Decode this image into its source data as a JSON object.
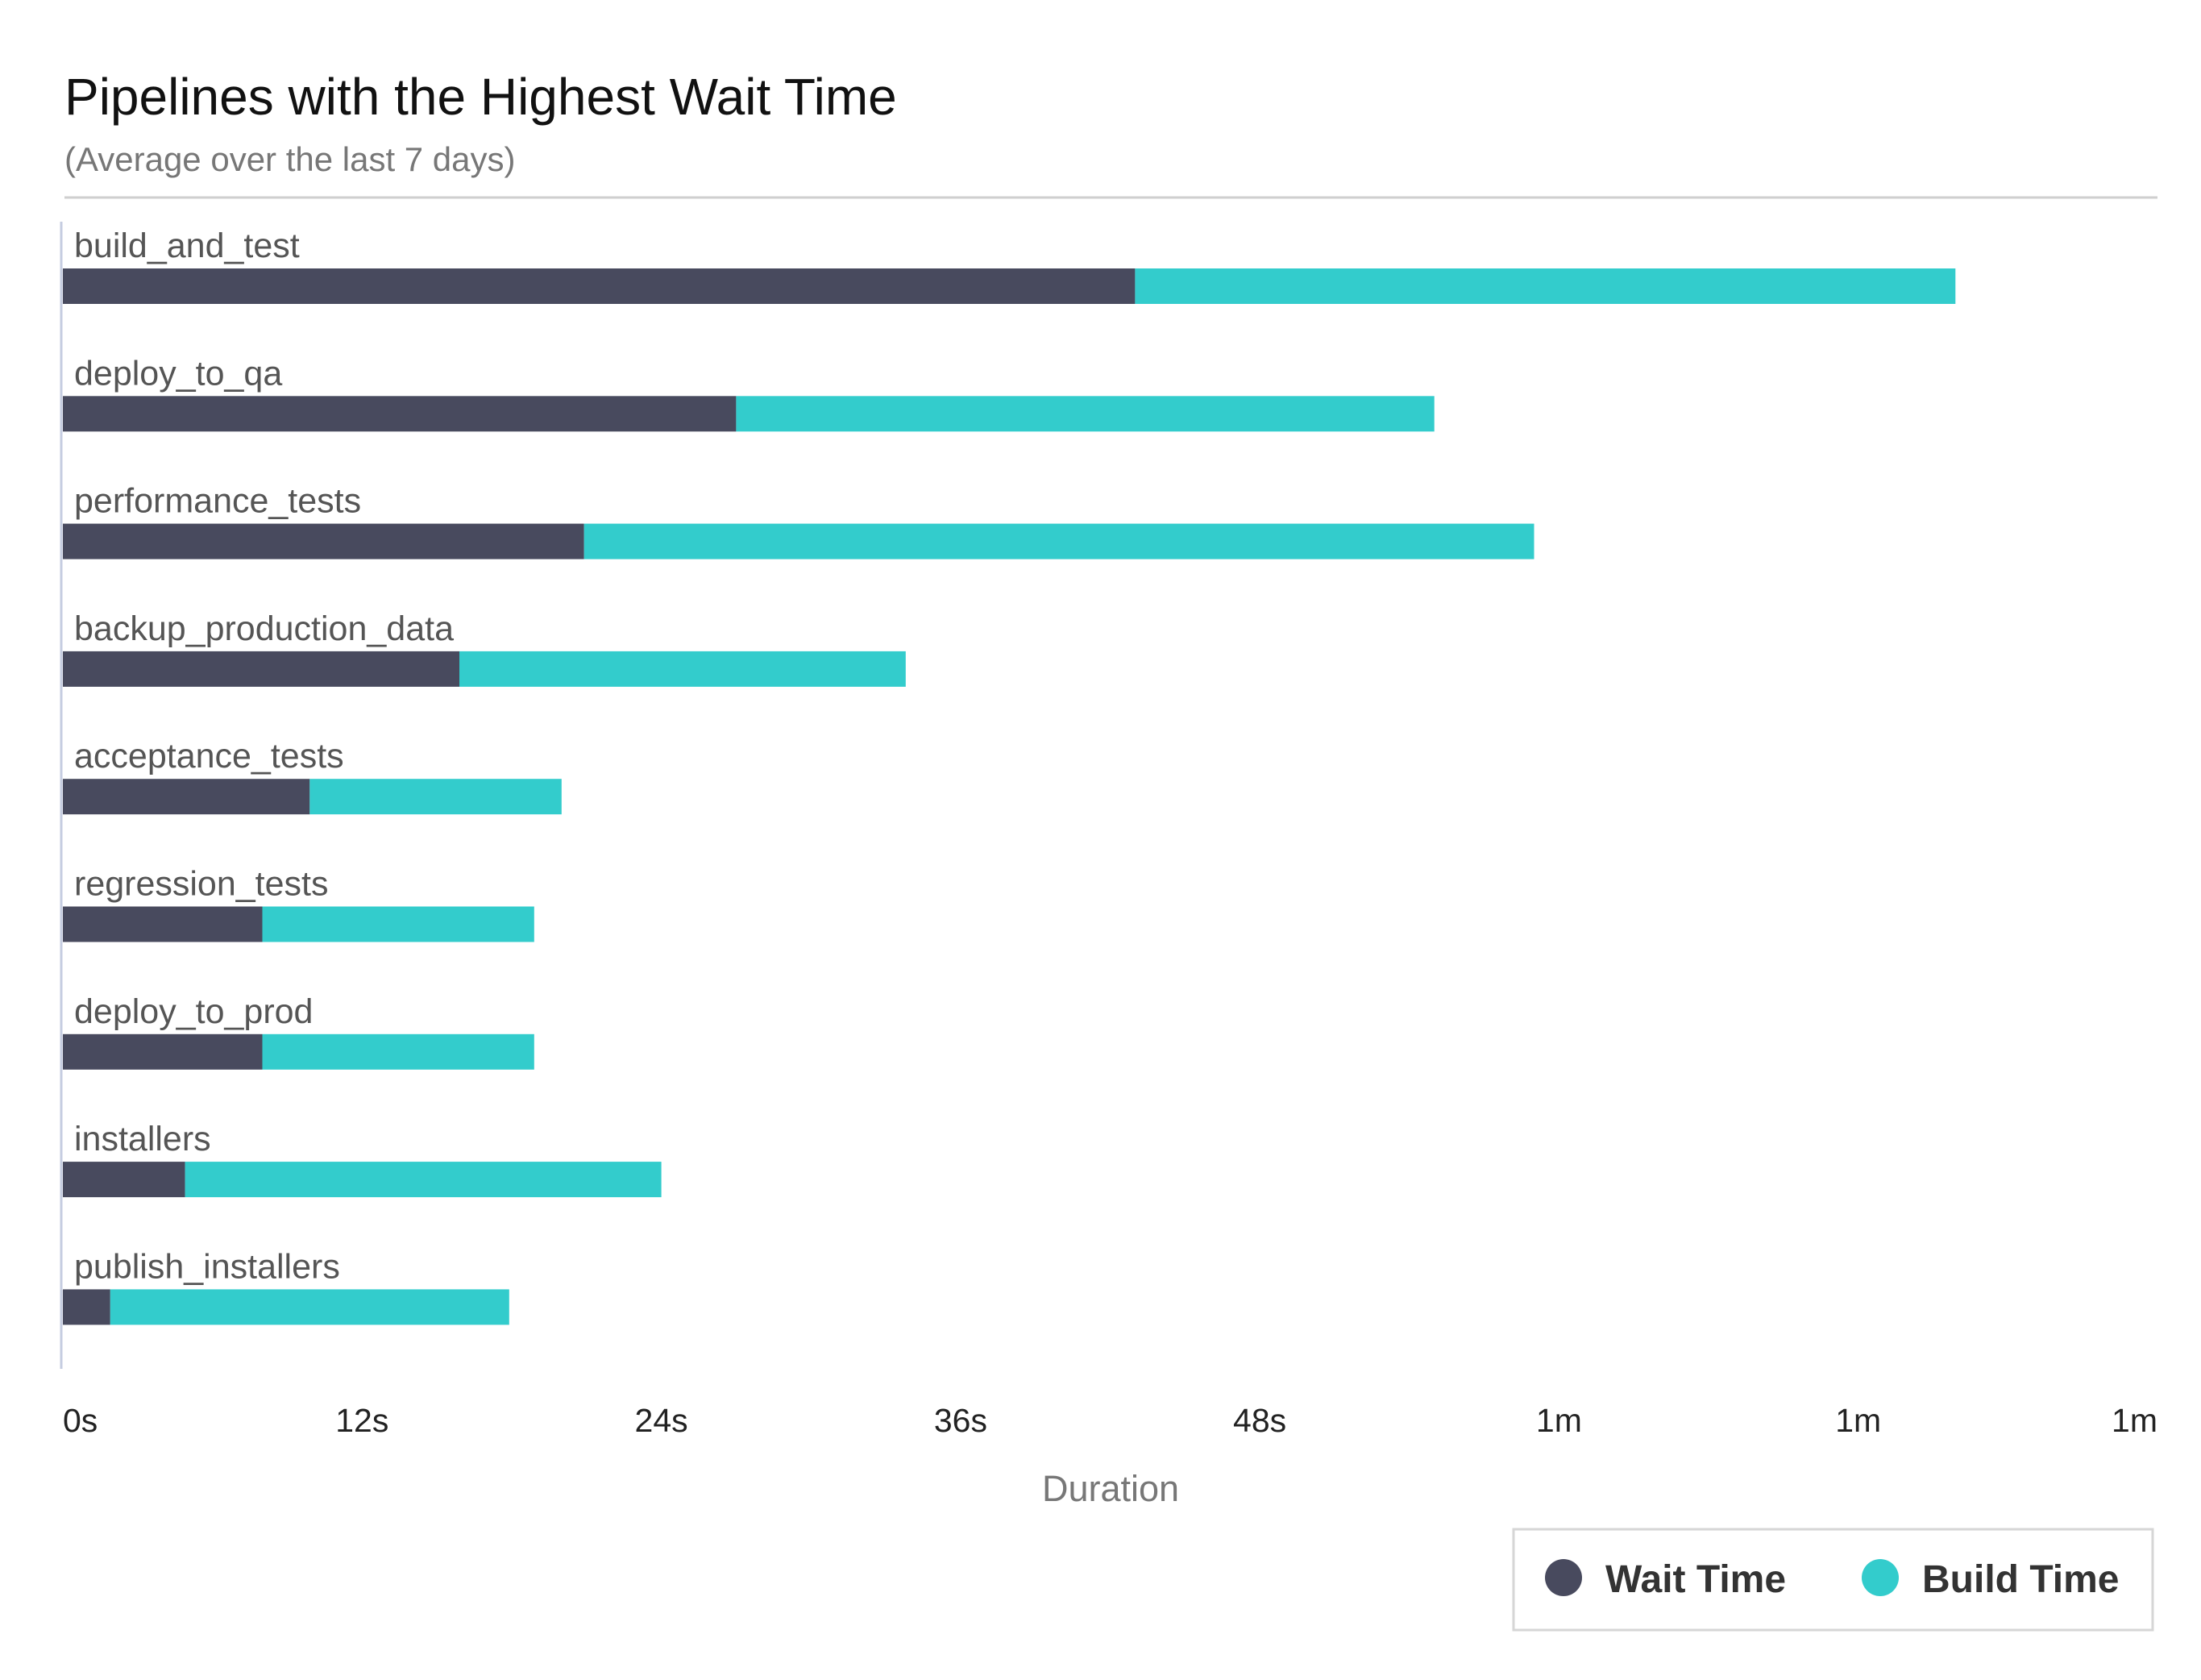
{
  "chart_data": {
    "type": "bar",
    "orientation": "horizontal",
    "stacked": true,
    "title": "Pipelines with the Highest Wait Time",
    "subtitle": "(Average over the last 7 days)",
    "xlabel": "Duration",
    "xlim": [
      0,
      84
    ],
    "x_ticks": [
      {
        "value": 0,
        "label": "0s"
      },
      {
        "value": 12,
        "label": "12s"
      },
      {
        "value": 24,
        "label": "24s"
      },
      {
        "value": 36,
        "label": "36s"
      },
      {
        "value": 48,
        "label": "48s"
      },
      {
        "value": 60,
        "label": "1m"
      },
      {
        "value": 72,
        "label": "1m"
      },
      {
        "value": 84,
        "label": "1m"
      }
    ],
    "categories": [
      "build_and_test",
      "deploy_to_qa",
      "performance_tests",
      "backup_production_data",
      "acceptance_tests",
      "regression_tests",
      "deploy_to_prod",
      "installers",
      "publish_installers"
    ],
    "series": [
      {
        "name": "Wait Time",
        "color": "#484a5e",
        "values": [
          43.0,
          27.0,
          20.9,
          15.9,
          9.9,
          8.0,
          8.0,
          4.9,
          1.9
        ]
      },
      {
        "name": "Build Time",
        "color": "#33cccc",
        "values": [
          32.9,
          28.0,
          38.1,
          17.9,
          10.1,
          10.9,
          10.9,
          19.1,
          16.0
        ]
      }
    ],
    "grid": false,
    "legend": "bottom-right"
  }
}
